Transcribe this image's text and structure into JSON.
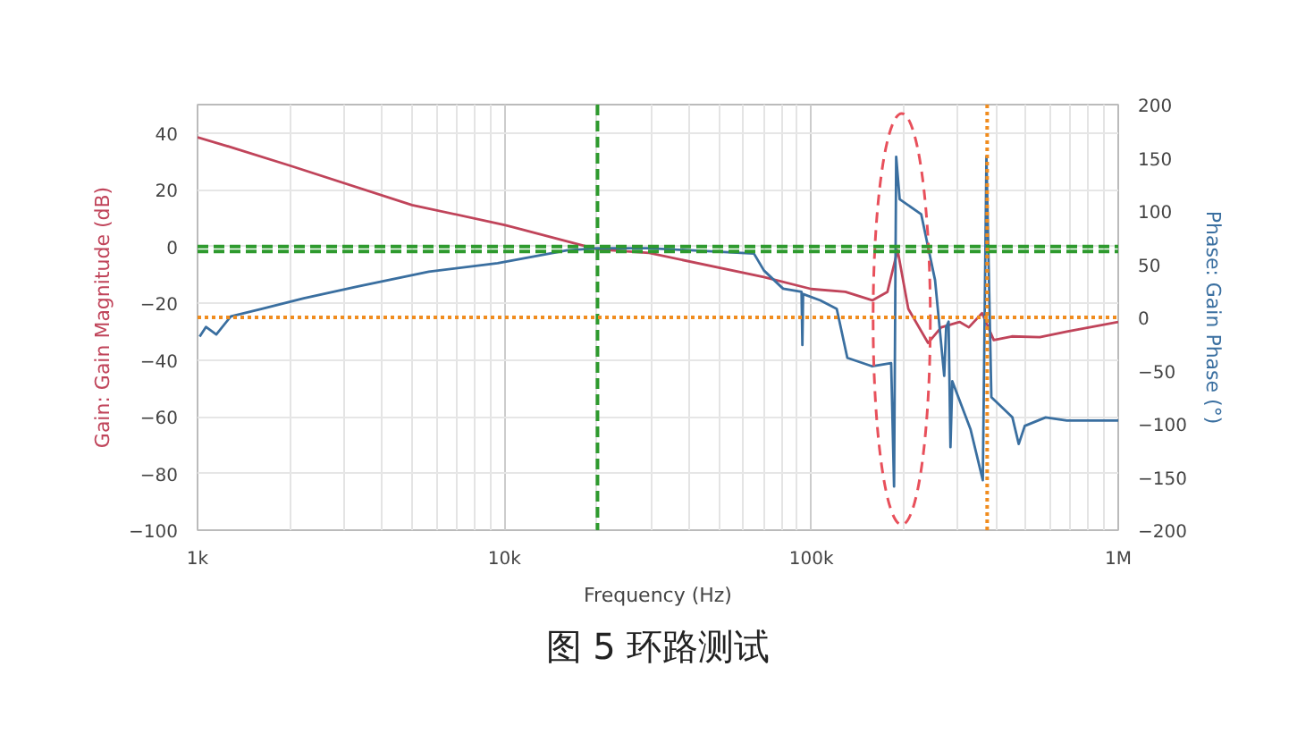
{
  "chart_data": {
    "type": "line",
    "title": "图 5 环路测试",
    "xlabel": "Frequency (Hz)",
    "ylabel": "Gain: Gain Magnitude (dB)",
    "y2label": "Phase: Gain Phase (°)",
    "log": "x",
    "grid": true,
    "line_style": "solid",
    "marker": "none",
    "xlim": [
      1000,
      1000000
    ],
    "xticks": [
      {
        "value": 1000,
        "label": "1k"
      },
      {
        "value": 10000,
        "label": "10k"
      },
      {
        "value": 100000,
        "label": "100k"
      },
      {
        "value": 1000000,
        "label": "1M"
      }
    ],
    "ylim": [
      -100,
      50
    ],
    "yticks": [
      -100,
      -80,
      -60,
      -40,
      -20,
      0,
      20,
      40
    ],
    "y2lim": [
      -200,
      200
    ],
    "y2ticks": [
      -200,
      -150,
      -100,
      -50,
      0,
      50,
      100,
      150,
      200
    ],
    "series": [
      {
        "color": "#c0445a",
        "x": [
          1000,
          1284,
          2000,
          5000,
          10000,
          20100,
          29600,
          70000,
          100000,
          129000,
          158000,
          177000,
          191000,
          207000,
          240000,
          265000,
          304000,
          326000,
          360000,
          393000,
          450000,
          555000,
          680000,
          1000000
        ],
        "values": [
          38.5,
          35,
          28.5,
          14.6,
          7.6,
          -1,
          -2.3,
          -10.8,
          -15,
          -16,
          -19,
          -16,
          -1.3,
          -22,
          -34,
          -28.5,
          -26.6,
          -28.5,
          -23.5,
          -33,
          -31.7,
          -32,
          -30,
          -26.6
        ]
      },
      {
        "color": "#3a6fa0",
        "axis": "y2",
        "x": [
          1016,
          1065,
          1151,
          1284,
          1623,
          2219,
          3330,
          5670,
          9500,
          15920,
          20100,
          29600,
          65000,
          70100,
          80900,
          92900,
          93500,
          94000,
          107000,
          121000,
          131000,
          158000,
          182000,
          186000,
          189000,
          194000,
          228000,
          253000,
          271000,
          275000,
          280000,
          284000,
          288000,
          330000,
          362000,
          372000,
          386000,
          452000,
          474000,
          496000,
          580000,
          680000,
          1000000
        ],
        "values": [
          -18,
          -9,
          -16,
          1,
          8,
          18,
          29,
          43,
          51,
          63,
          65,
          65,
          60,
          44,
          27,
          24,
          -26,
          22,
          16,
          8,
          -38,
          -46,
          -43,
          -159,
          151,
          111,
          97,
          35,
          -55,
          -9,
          -4,
          -122,
          -60,
          -105,
          -153,
          151,
          -75,
          -94,
          -119,
          -102,
          -94,
          -97,
          -97
        ]
      }
    ],
    "ref_lines": [
      {
        "axis": "y",
        "value": 0,
        "color": "#2e9a2e",
        "line_style": "dashed"
      },
      {
        "axis": "y2",
        "value": 62,
        "color": "#2e9a2e",
        "line_style": "dashed"
      },
      {
        "axis": "x",
        "value": 20100,
        "color": "#2e9a2e",
        "line_style": "dashed"
      },
      {
        "axis": "y2",
        "value": 0,
        "color": "#f08c1e",
        "line_style": "dotted"
      },
      {
        "axis": "x",
        "value": 374000,
        "color": "#f08c1e",
        "line_style": "dotted"
      }
    ]
  }
}
